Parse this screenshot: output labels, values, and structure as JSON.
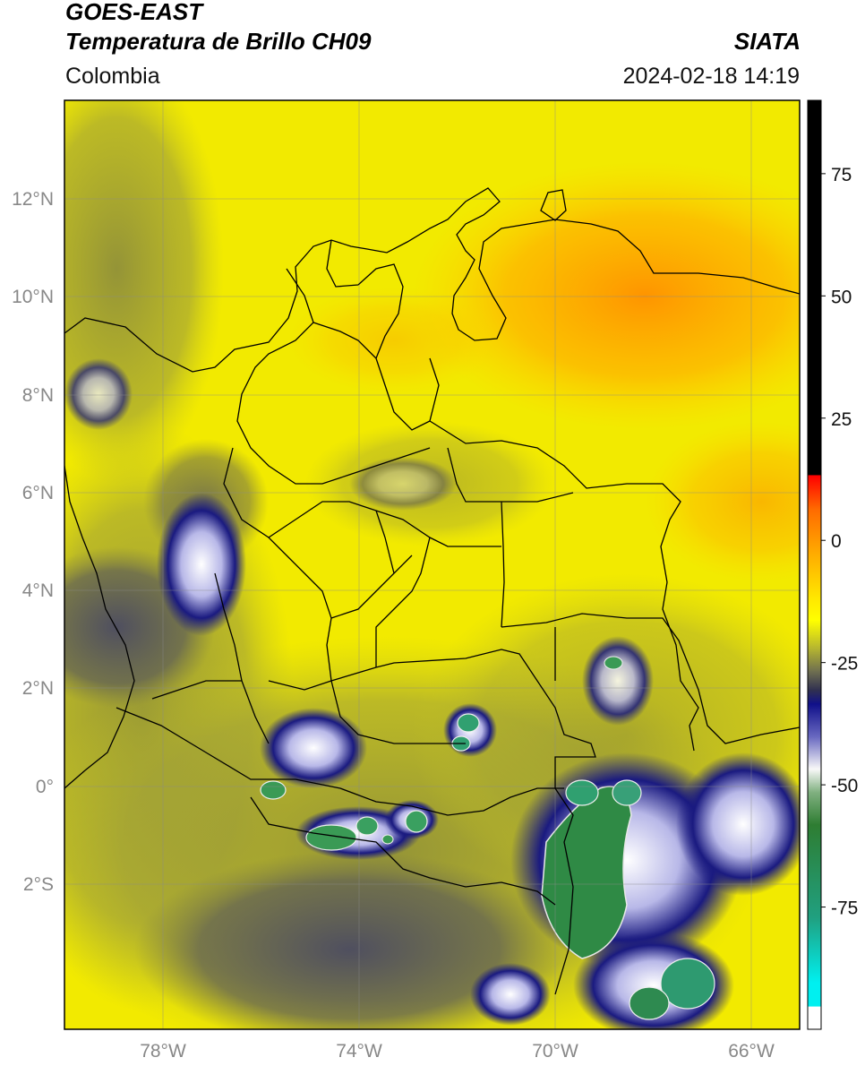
{
  "header": {
    "satellite": "GOES-EAST",
    "product": "Temperatura de Brillo CH09",
    "brand": "SIATA",
    "region": "Colombia",
    "timestamp": "2024-02-18 14:19"
  },
  "map": {
    "lat_range": [
      -5,
      14
    ],
    "lon_range": [
      -80,
      -65
    ],
    "lat_ticks": [
      "12°N",
      "10°N",
      "8°N",
      "6°N",
      "4°N",
      "2°N",
      "0°",
      "2°S"
    ],
    "lon_ticks": [
      "78°W",
      "74°W",
      "70°W",
      "66°W"
    ],
    "grid": true
  },
  "colorbar": {
    "range": [
      -100,
      90
    ],
    "ticks": [
      "75",
      "50",
      "25",
      "0",
      "-25",
      "-50",
      "-75"
    ],
    "colors": {
      "hot": "#000000",
      "red": "#e8201a",
      "orange": "#ff9a00",
      "yellow": "#ffff00",
      "olive": "#8a8a35",
      "gray": "#505060",
      "navy": "#141478",
      "white": "#f5f5f5",
      "green": "#2e7d3a",
      "cyan": "#00e5e5"
    }
  }
}
